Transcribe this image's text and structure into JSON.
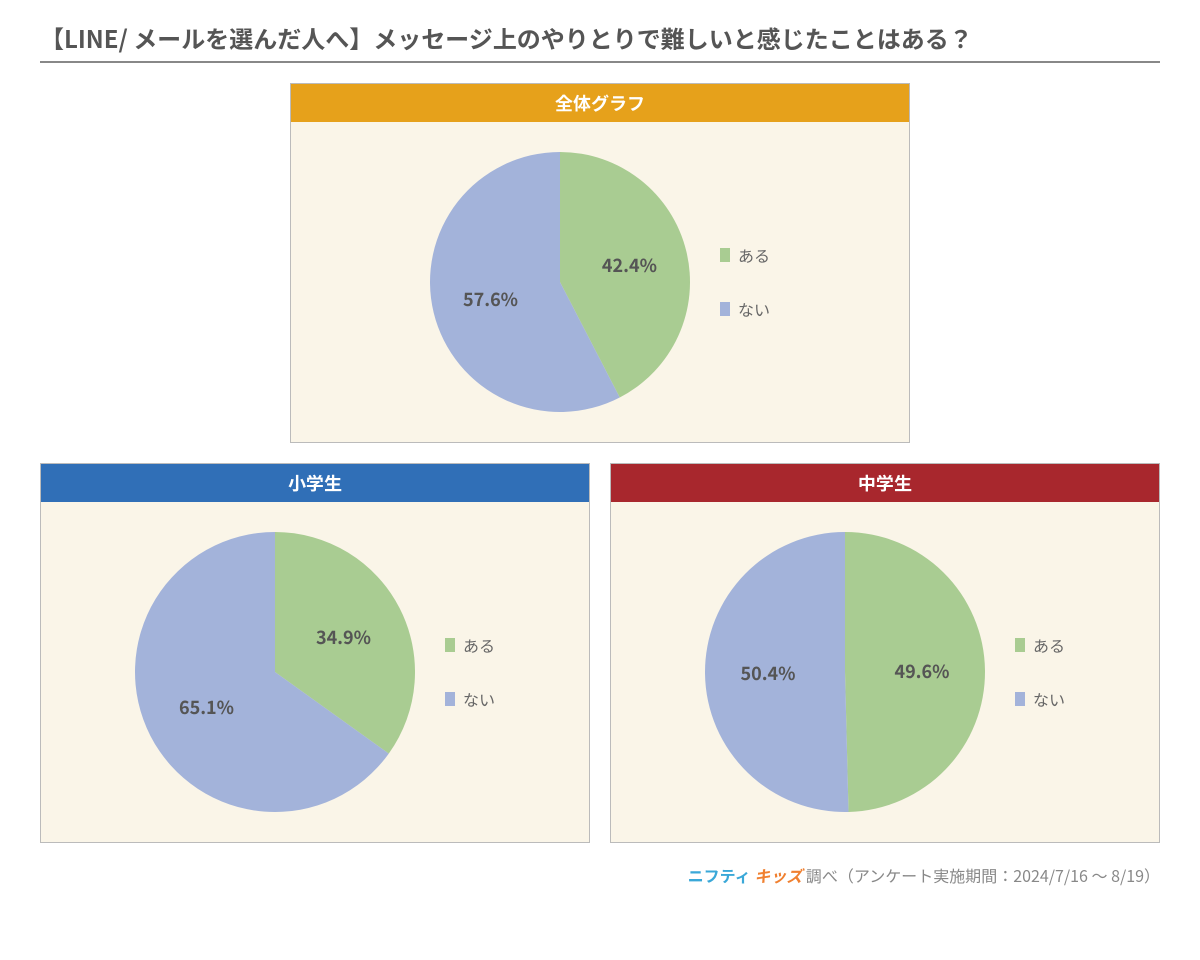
{
  "title": "【LINE/ メールを選んだ人へ】メッセージ上のやりとりで難しいと感じたことはある？",
  "legend_labels": {
    "yes": "ある",
    "no": "ない"
  },
  "slice_colors": {
    "yes": "#a9cc92",
    "no": "#a3b3da"
  },
  "chart_background": "#faf5e8",
  "label_color": "#555555",
  "charts": {
    "overall": {
      "header": "全体グラフ",
      "header_bg": "#e6a11b",
      "pie_radius": 130,
      "slices": [
        {
          "key": "yes",
          "value": 42.4,
          "label": "42.4%"
        },
        {
          "key": "no",
          "value": 57.6,
          "label": "57.6%"
        }
      ]
    },
    "elementary": {
      "header": "小学生",
      "header_bg": "#306fb7",
      "pie_radius": 140,
      "slices": [
        {
          "key": "yes",
          "value": 34.9,
          "label": "34.9%"
        },
        {
          "key": "no",
          "value": 65.1,
          "label": "65.1%"
        }
      ]
    },
    "junior": {
      "header": "中学生",
      "header_bg": "#a8272d",
      "pie_radius": 140,
      "slices": [
        {
          "key": "yes",
          "value": 49.6,
          "label": "49.6%"
        },
        {
          "key": "no",
          "value": 50.4,
          "label": "50.4%"
        }
      ]
    }
  },
  "footer": {
    "brand_nifty": "ニフティ",
    "brand_kids": "キッズ",
    "text": " 調べ（アンケート実施期間：2024/7/16 ～ 8/19）"
  }
}
